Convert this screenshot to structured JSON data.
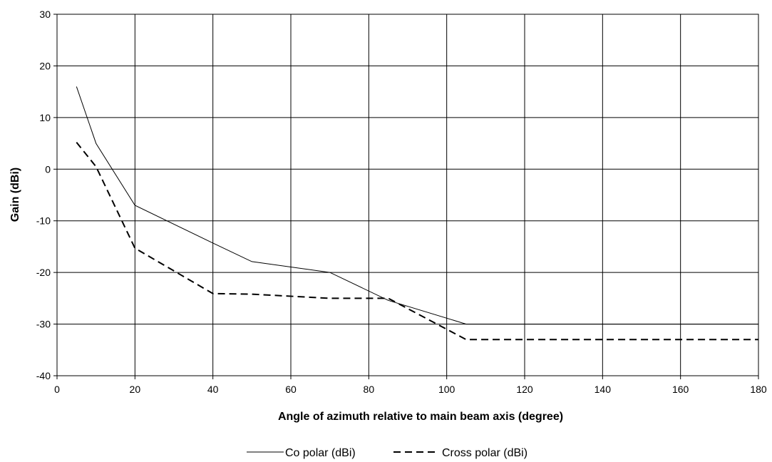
{
  "chart_data": {
    "type": "line",
    "title": "",
    "xlabel": "Angle of azimuth relative to main beam axis (degree)",
    "ylabel": "Gain (dBi)",
    "xlim": [
      0,
      180
    ],
    "ylim": [
      -40,
      30
    ],
    "xticks": [
      0,
      20,
      40,
      60,
      80,
      100,
      120,
      140,
      160,
      180
    ],
    "yticks": [
      30,
      20,
      10,
      0,
      -10,
      -20,
      -30,
      -40
    ],
    "grid": true,
    "legend_position": "bottom",
    "series": [
      {
        "name": "Co polar (dBi)",
        "style": "solid",
        "color": "#000000",
        "points": [
          [
            5,
            16
          ],
          [
            10,
            5
          ],
          [
            20,
            -7
          ],
          [
            40,
            -14.3
          ],
          [
            50,
            -17.9
          ],
          [
            70,
            -20
          ],
          [
            85,
            -25.4
          ],
          [
            105,
            -30
          ],
          [
            180,
            -30
          ]
        ]
      },
      {
        "name": "Cross polar (dBi)",
        "style": "dashed",
        "color": "#000000",
        "points": [
          [
            5,
            5.2
          ],
          [
            10,
            0.5
          ],
          [
            20,
            -15.3
          ],
          [
            40,
            -24.1
          ],
          [
            50,
            -24.2
          ],
          [
            70,
            -25
          ],
          [
            85,
            -25
          ],
          [
            105,
            -33
          ],
          [
            180,
            -33
          ]
        ]
      }
    ]
  }
}
